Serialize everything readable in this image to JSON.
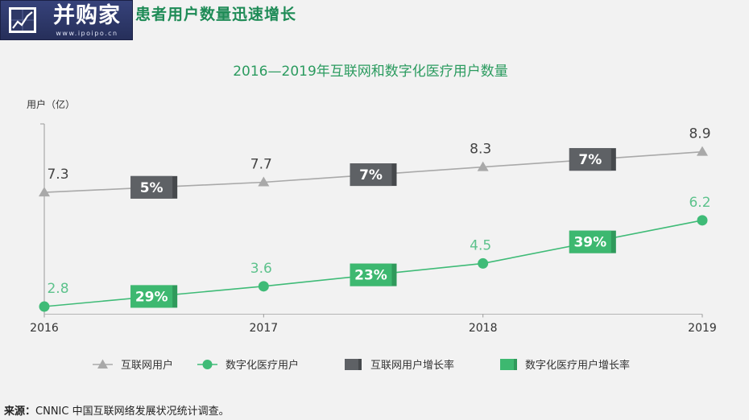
{
  "header": {
    "title": "患者用户数量迅速增长"
  },
  "logo": {
    "name": "并购家",
    "url": "www.ipoipo.cn"
  },
  "chart_data": {
    "type": "line",
    "title": "2016—2019年互联网和数字化医疗用户数量",
    "ylabel": "用户（亿）",
    "categories": [
      "2016",
      "2017",
      "2018",
      "2019"
    ],
    "ylim": [
      2.5,
      10
    ],
    "grid": false,
    "legend": "bottom",
    "series": [
      {
        "name": "互联网用户",
        "marker": "triangle",
        "color": "#a9a9a9",
        "label_color": "#444444",
        "values": [
          7.3,
          7.7,
          8.3,
          8.9
        ]
      },
      {
        "name": "数字化医疗用户",
        "marker": "circle",
        "color": "#3fbb77",
        "label_color": "#5dc28c",
        "values": [
          2.8,
          3.6,
          4.5,
          6.2
        ]
      }
    ],
    "growth_rates": [
      {
        "name": "互联网用户增长率",
        "color": "#5e6165",
        "shade": "#46494c",
        "values": [
          "5%",
          "7%",
          "7%"
        ]
      },
      {
        "name": "数字化医疗用户增长率",
        "color": "#3db870",
        "shade": "#2f9a5b",
        "values": [
          "29%",
          "23%",
          "39%"
        ]
      }
    ]
  },
  "source": {
    "label": "来源：",
    "text": "CNNIC 中国互联网络发展状况统计调查。"
  }
}
